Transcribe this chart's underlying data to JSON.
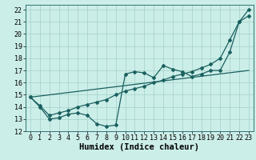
{
  "xlabel": "Humidex (Indice chaleur)",
  "background_color": "#cceee8",
  "grid_color": "#aad4ce",
  "line_color": "#1a6060",
  "xlim": [
    -0.5,
    23.5
  ],
  "ylim": [
    12,
    22.4
  ],
  "xticks": [
    0,
    1,
    2,
    3,
    4,
    5,
    6,
    7,
    8,
    9,
    10,
    11,
    12,
    13,
    14,
    15,
    16,
    17,
    18,
    19,
    20,
    21,
    22,
    23
  ],
  "yticks": [
    12,
    13,
    14,
    15,
    16,
    17,
    18,
    19,
    20,
    21,
    22
  ],
  "line1_x": [
    0,
    1,
    2,
    3,
    4,
    5,
    6,
    7,
    8,
    9,
    10,
    11,
    12,
    13,
    14,
    15,
    16,
    17,
    18,
    19,
    20,
    21,
    22,
    23
  ],
  "line1_y": [
    14.8,
    14.0,
    13.0,
    13.1,
    13.4,
    13.5,
    13.3,
    12.6,
    12.4,
    12.5,
    16.7,
    16.9,
    16.8,
    16.4,
    17.4,
    17.1,
    16.9,
    16.5,
    16.7,
    17.0,
    17.0,
    18.5,
    21.0,
    21.5
  ],
  "line2_x": [
    0,
    1,
    2,
    3,
    4,
    5,
    6,
    7,
    8,
    9,
    10,
    11,
    12,
    13,
    14,
    15,
    16,
    17,
    18,
    19,
    20,
    21,
    22,
    23
  ],
  "line2_y": [
    14.8,
    14.1,
    13.3,
    13.5,
    13.7,
    14.0,
    14.2,
    14.4,
    14.6,
    15.0,
    15.3,
    15.5,
    15.7,
    16.0,
    16.2,
    16.5,
    16.7,
    16.9,
    17.2,
    17.5,
    18.0,
    19.5,
    21.0,
    22.0
  ],
  "line3_x": [
    0,
    23
  ],
  "line3_y": [
    14.8,
    17.0
  ],
  "font_size_label": 7.5,
  "font_size_tick": 6.0,
  "marker": "D",
  "marker_size": 2.0,
  "linewidth": 0.9
}
